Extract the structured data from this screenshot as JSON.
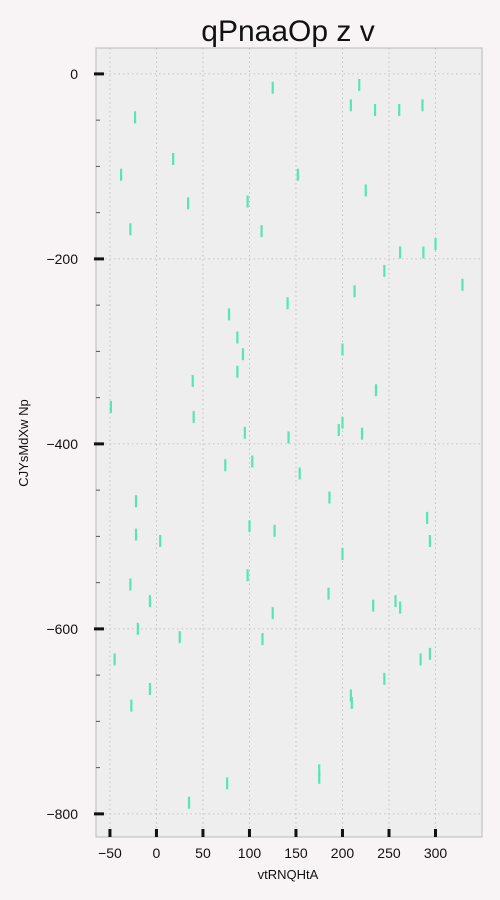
{
  "chart_data": {
    "type": "scatter",
    "marker": "vertical-line",
    "title": "qPnaaOp z v",
    "xlabel": "vtRNQHtA",
    "ylabel": "CJYsMdXw Np",
    "xlim": [
      -65,
      350
    ],
    "ylim": [
      -825,
      28
    ],
    "xticks": [
      -50,
      0,
      50,
      100,
      150,
      200,
      250,
      300
    ],
    "yticks": [
      0,
      -200,
      -400,
      -600,
      -800
    ],
    "xtick_labels": [
      "−50",
      "0",
      "50",
      "100",
      "150",
      "200",
      "250",
      "300"
    ],
    "ytick_labels": [
      "0",
      "−200",
      "−400",
      "−600",
      "−800"
    ],
    "grid": true,
    "colors": {
      "background": "#eeeeee",
      "page": "#f8f3f4",
      "marker": "#55e6b2",
      "grid": "#b8b8b8",
      "spine": "#bbbbbb"
    },
    "points": [
      {
        "x": 125,
        "y": -15
      },
      {
        "x": 218,
        "y": -12
      },
      {
        "x": 209,
        "y": -34
      },
      {
        "x": 235,
        "y": -39
      },
      {
        "x": 261,
        "y": -39
      },
      {
        "x": 286,
        "y": -34
      },
      {
        "x": -23,
        "y": -47
      },
      {
        "x": 18,
        "y": -92
      },
      {
        "x": -38,
        "y": -109
      },
      {
        "x": 152,
        "y": -109
      },
      {
        "x": 225,
        "y": -126
      },
      {
        "x": 34,
        "y": -140
      },
      {
        "x": 98,
        "y": -138
      },
      {
        "x": 113,
        "y": -170
      },
      {
        "x": -28,
        "y": -168
      },
      {
        "x": 300,
        "y": -184
      },
      {
        "x": 262,
        "y": -193
      },
      {
        "x": 287,
        "y": -193
      },
      {
        "x": 245,
        "y": -213
      },
      {
        "x": 329,
        "y": -228
      },
      {
        "x": 213,
        "y": -235
      },
      {
        "x": 141,
        "y": -248
      },
      {
        "x": 78,
        "y": -260
      },
      {
        "x": 87,
        "y": -285
      },
      {
        "x": 93,
        "y": -303
      },
      {
        "x": 200,
        "y": -298
      },
      {
        "x": 87,
        "y": -322
      },
      {
        "x": 39,
        "y": -332
      },
      {
        "x": 236,
        "y": -342
      },
      {
        "x": -49,
        "y": -360
      },
      {
        "x": 40,
        "y": -371
      },
      {
        "x": 200,
        "y": -377
      },
      {
        "x": 196,
        "y": -385
      },
      {
        "x": 95,
        "y": -388
      },
      {
        "x": 221,
        "y": -389
      },
      {
        "x": 142,
        "y": -393
      },
      {
        "x": 103,
        "y": -419
      },
      {
        "x": 74,
        "y": -423
      },
      {
        "x": 154,
        "y": -432
      },
      {
        "x": 186,
        "y": -458
      },
      {
        "x": -22,
        "y": -462
      },
      {
        "x": 291,
        "y": -480
      },
      {
        "x": 100,
        "y": -489
      },
      {
        "x": 127,
        "y": -494
      },
      {
        "x": -22,
        "y": -498
      },
      {
        "x": 294,
        "y": -505
      },
      {
        "x": 4,
        "y": -505
      },
      {
        "x": 200,
        "y": -519
      },
      {
        "x": 98,
        "y": -542
      },
      {
        "x": -28,
        "y": -552
      },
      {
        "x": 185,
        "y": -562
      },
      {
        "x": 257,
        "y": -570
      },
      {
        "x": -7,
        "y": -570
      },
      {
        "x": 233,
        "y": -575
      },
      {
        "x": 262,
        "y": -577
      },
      {
        "x": 125,
        "y": -583
      },
      {
        "x": -20,
        "y": -600
      },
      {
        "x": 25,
        "y": -609
      },
      {
        "x": 114,
        "y": -611
      },
      {
        "x": 294,
        "y": -627
      },
      {
        "x": -45,
        "y": -633
      },
      {
        "x": 284,
        "y": -633
      },
      {
        "x": 245,
        "y": -654
      },
      {
        "x": -7,
        "y": -665
      },
      {
        "x": 209,
        "y": -672
      },
      {
        "x": 210,
        "y": -680
      },
      {
        "x": -27,
        "y": -683
      },
      {
        "x": 175,
        "y": -753
      },
      {
        "x": 175,
        "y": -761
      },
      {
        "x": 76,
        "y": -767
      },
      {
        "x": 35,
        "y": -788
      }
    ]
  }
}
